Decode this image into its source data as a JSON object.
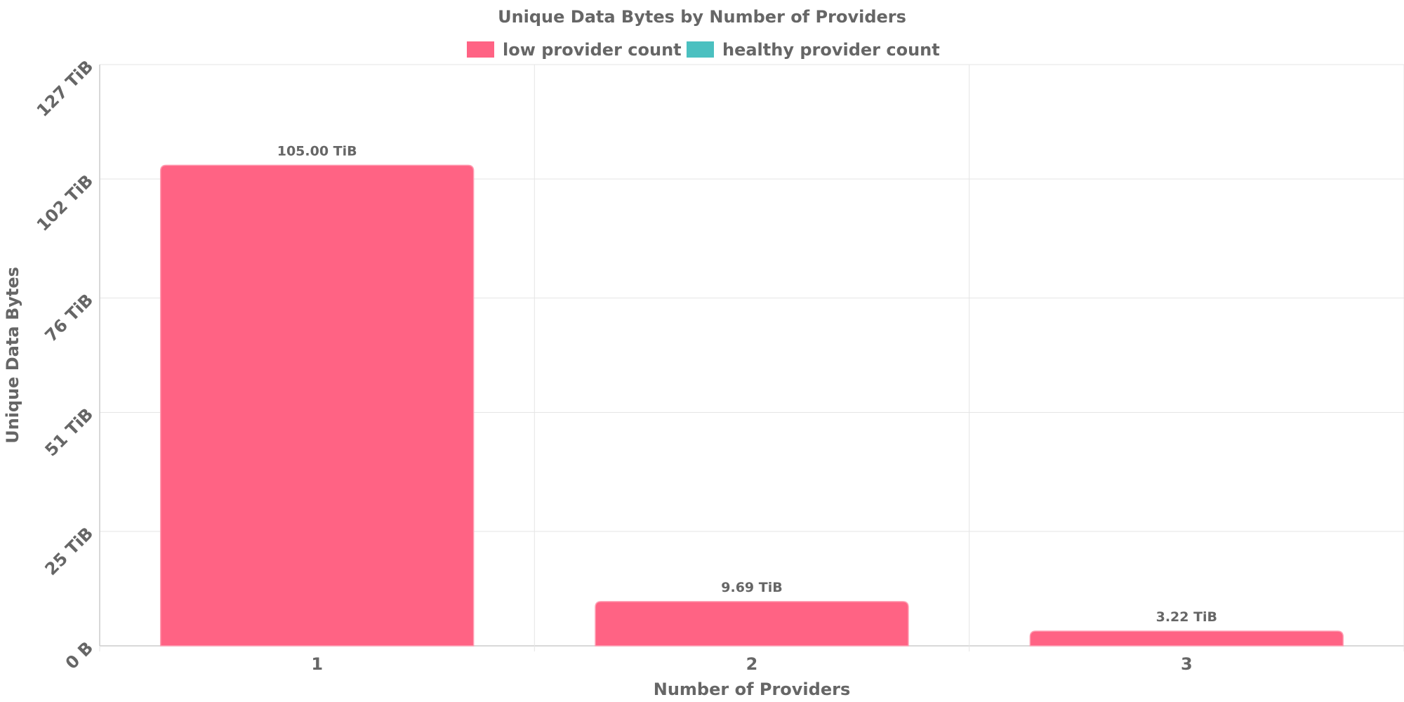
{
  "chart_data": {
    "type": "bar",
    "title": "Unique Data Bytes by Number of Providers",
    "xlabel": "Number of Providers",
    "ylabel": "Unique Data Bytes",
    "categories": [
      "1",
      "2",
      "3"
    ],
    "series": [
      {
        "name": "low provider count",
        "color": "#ff6384",
        "values": [
          105.0,
          9.69,
          3.22
        ],
        "labels": [
          "105.00 TiB",
          "9.69 TiB",
          "3.22 TiB"
        ]
      },
      {
        "name": "healthy provider count",
        "color": "#4bc0c0",
        "values": [
          0,
          0,
          0
        ],
        "labels": []
      }
    ],
    "unit": "TiB",
    "ylim": [
      0,
      127
    ],
    "yticks": [
      0,
      25,
      51,
      76,
      102,
      127
    ],
    "ytick_labels": [
      "0 B",
      "25 TiB",
      "51 TiB",
      "76 TiB",
      "102 TiB",
      "127 TiB"
    ],
    "grid": true,
    "legend": "top"
  }
}
